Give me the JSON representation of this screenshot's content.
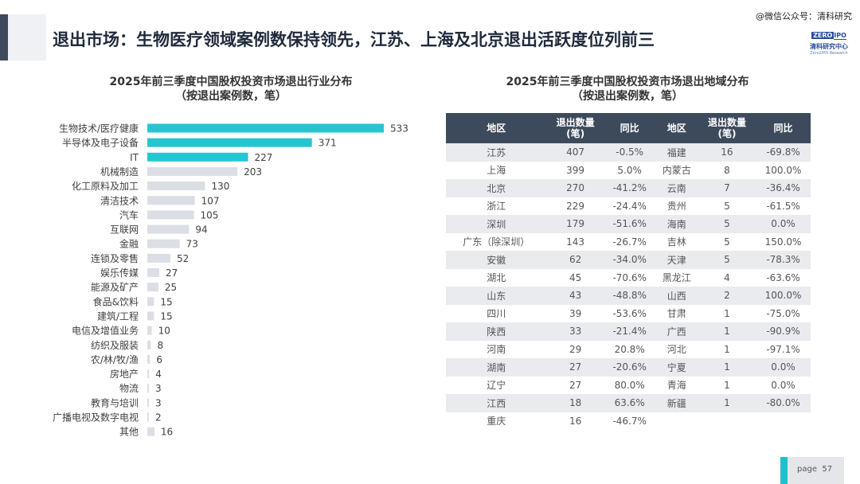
{
  "header": {
    "title": "退出市场：生物医疗领域案例数保持领先，江苏、上海及北京退出活跃度位列前三",
    "watermark": "@微信公众号：清科研究",
    "logo": {
      "brand_left": "ZERO",
      "brand_right": "IPO",
      "cn": "清科研究中心",
      "en": "Zero2IPO Research"
    }
  },
  "chart_data": {
    "type": "bar",
    "orientation": "horizontal",
    "title": "2025年前三季度中国股权投资市场退出行业分布",
    "subtitle": "（按退出案例数，笔）",
    "categories": [
      "生物技术/医疗健康",
      "半导体及电子设备",
      "IT",
      "机械制造",
      "化工原料及加工",
      "清洁技术",
      "汽车",
      "互联网",
      "金融",
      "连锁及零售",
      "娱乐传媒",
      "能源及矿产",
      "食品&饮料",
      "建筑/工程",
      "电信及增值业务",
      "纺织及服装",
      "农/林/牧/渔",
      "房地产",
      "物流",
      "教育与培训",
      "广播电视及数字电视",
      "其他"
    ],
    "values": [
      533,
      371,
      227,
      203,
      130,
      107,
      105,
      94,
      73,
      52,
      27,
      25,
      15,
      15,
      10,
      8,
      6,
      4,
      3,
      3,
      2,
      16
    ],
    "highlight_count": 3,
    "colors": {
      "highlight": "#25c6d2",
      "normal": "#dcdee6"
    }
  },
  "table": {
    "title": "2025年前三季度中国股权投资市场退出地域分布",
    "subtitle": "（按退出案例数，笔）",
    "headers": [
      "地区",
      "退出数量\n(笔)",
      "同比",
      "地区",
      "退出数量\n(笔)",
      "同比"
    ],
    "rows": [
      [
        "江苏",
        "407",
        "-0.5%",
        "福建",
        "16",
        "-69.8%"
      ],
      [
        "上海",
        "399",
        "5.0%",
        "内蒙古",
        "8",
        "100.0%"
      ],
      [
        "北京",
        "270",
        "-41.2%",
        "云南",
        "7",
        "-36.4%"
      ],
      [
        "浙江",
        "229",
        "-24.4%",
        "贵州",
        "5",
        "-61.5%"
      ],
      [
        "深圳",
        "179",
        "-51.6%",
        "海南",
        "5",
        "0.0%"
      ],
      [
        "广东（除深圳）",
        "143",
        "-26.7%",
        "吉林",
        "5",
        "150.0%"
      ],
      [
        "安徽",
        "62",
        "-34.0%",
        "天津",
        "5",
        "-78.3%"
      ],
      [
        "湖北",
        "45",
        "-70.6%",
        "黑龙江",
        "4",
        "-63.6%"
      ],
      [
        "山东",
        "43",
        "-48.8%",
        "山西",
        "2",
        "100.0%"
      ],
      [
        "四川",
        "39",
        "-53.6%",
        "甘肃",
        "1",
        "-75.0%"
      ],
      [
        "陕西",
        "33",
        "-21.4%",
        "广西",
        "1",
        "-90.9%"
      ],
      [
        "河南",
        "29",
        "20.8%",
        "河北",
        "1",
        "-97.1%"
      ],
      [
        "湖南",
        "27",
        "-20.6%",
        "宁夏",
        "1",
        "0.0%"
      ],
      [
        "辽宁",
        "27",
        "80.0%",
        "青海",
        "1",
        "0.0%"
      ],
      [
        "江西",
        "18",
        "63.6%",
        "新疆",
        "1",
        "-80.0%"
      ],
      [
        "重庆",
        "16",
        "-46.7%",
        "",
        "",
        ""
      ]
    ]
  },
  "footer": {
    "page_label": "page",
    "page_number": "57"
  }
}
